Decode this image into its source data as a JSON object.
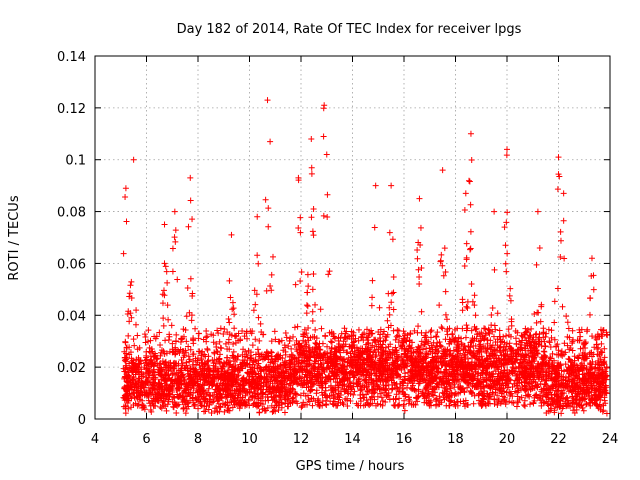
{
  "chart_data": {
    "type": "scatter",
    "title": "Day 182 of 2014, Rate Of TEC Index for receiver lpgs",
    "xlabel": "GPS time / hours",
    "ylabel": "ROTI / TECUs",
    "xlim": [
      4,
      24
    ],
    "ylim": [
      0,
      0.14
    ],
    "x_ticks": [
      4,
      6,
      8,
      10,
      12,
      14,
      16,
      18,
      20,
      22,
      24
    ],
    "y_ticks": [
      0,
      0.02,
      0.04,
      0.06,
      0.08,
      0.1,
      0.12,
      0.14
    ],
    "x_tick_labels": [
      "4",
      "6",
      "8",
      "10",
      "12",
      "14",
      "16",
      "18",
      "20",
      "22",
      "24"
    ],
    "y_tick_labels": [
      "0",
      "0.02",
      "0.04",
      "0.06",
      "0.08",
      "0.1",
      "0.12",
      "0.14"
    ],
    "grid": true,
    "marker": "+",
    "color": "#ff0000",
    "data_range_x": [
      5.1,
      23.9
    ],
    "series": [
      {
        "name": "ROTI",
        "description": "dense scatter of ROTI samples, baseline ~0.005-0.03 TECU, bursts up to ~0.12",
        "peaks": [
          {
            "x": 5.2,
            "y": 0.089
          },
          {
            "x": 5.5,
            "y": 0.1
          },
          {
            "x": 6.7,
            "y": 0.075
          },
          {
            "x": 7.1,
            "y": 0.08
          },
          {
            "x": 7.7,
            "y": 0.093
          },
          {
            "x": 9.3,
            "y": 0.071
          },
          {
            "x": 10.3,
            "y": 0.078
          },
          {
            "x": 10.7,
            "y": 0.123
          },
          {
            "x": 10.8,
            "y": 0.107
          },
          {
            "x": 11.9,
            "y": 0.093
          },
          {
            "x": 12.4,
            "y": 0.108
          },
          {
            "x": 12.9,
            "y": 0.121
          },
          {
            "x": 13.0,
            "y": 0.102
          },
          {
            "x": 14.9,
            "y": 0.09
          },
          {
            "x": 15.5,
            "y": 0.09
          },
          {
            "x": 16.6,
            "y": 0.085
          },
          {
            "x": 17.5,
            "y": 0.096
          },
          {
            "x": 18.4,
            "y": 0.087
          },
          {
            "x": 18.6,
            "y": 0.11
          },
          {
            "x": 19.5,
            "y": 0.08
          },
          {
            "x": 20.0,
            "y": 0.104
          },
          {
            "x": 21.2,
            "y": 0.08
          },
          {
            "x": 22.0,
            "y": 0.101
          },
          {
            "x": 22.2,
            "y": 0.087
          },
          {
            "x": 23.3,
            "y": 0.062
          }
        ]
      }
    ]
  }
}
